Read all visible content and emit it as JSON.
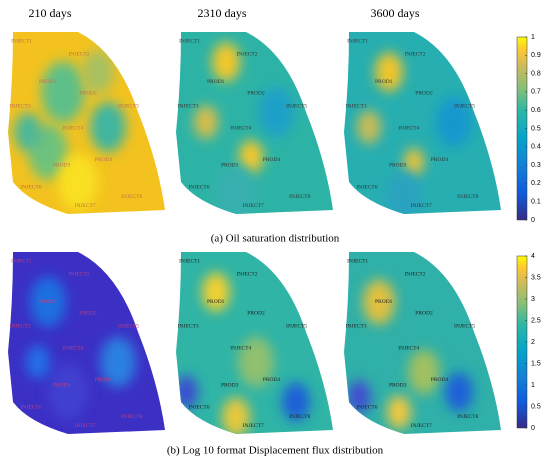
{
  "column_titles": [
    "210 days",
    "2310 days",
    "3600 days"
  ],
  "panels": [
    {
      "caption": "(a) Oil saturation distribution",
      "colorbar": {
        "lim": [
          0,
          1
        ],
        "ticks": [
          0,
          0.1,
          0.2,
          0.3,
          0.4,
          0.5,
          0.6,
          0.7,
          0.8,
          0.9,
          1
        ]
      }
    },
    {
      "caption": "(b) Log 10 format Displacement flux distribution",
      "colorbar": {
        "lim": [
          0,
          4
        ],
        "ticks": [
          0,
          0.5,
          1,
          1.5,
          2,
          2.5,
          3,
          3.5,
          4
        ]
      }
    }
  ],
  "wells": [
    {
      "label": "INJECT1"
    },
    {
      "label": "INJECT2"
    },
    {
      "label": "PROD1"
    },
    {
      "label": "PROD2"
    },
    {
      "label": "INJECT3"
    },
    {
      "label": "INJECT5"
    },
    {
      "label": "INJECT4"
    },
    {
      "label": "PROD3"
    },
    {
      "label": "PROD4"
    },
    {
      "label": "INJECT6"
    },
    {
      "label": "INJECT8"
    },
    {
      "label": "INJECT7"
    }
  ]
}
